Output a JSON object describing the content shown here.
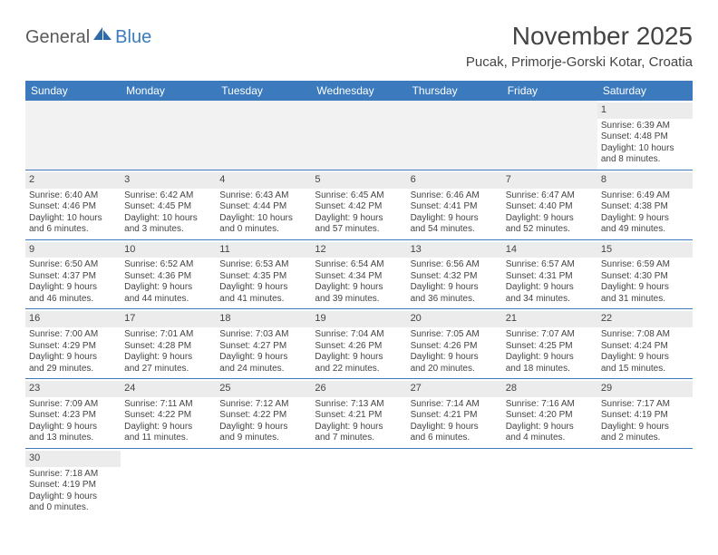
{
  "logo": {
    "part1": "General",
    "part2": "Blue"
  },
  "title": "November 2025",
  "location": "Pucak, Primorje-Gorski Kotar, Croatia",
  "colors": {
    "header_bg": "#3a7abd",
    "header_text": "#ffffff",
    "daynum_bg": "#ececec",
    "empty_bg": "#f2f2f2",
    "text": "#444444",
    "row_border": "#3a7abd"
  },
  "weekdays": [
    "Sunday",
    "Monday",
    "Tuesday",
    "Wednesday",
    "Thursday",
    "Friday",
    "Saturday"
  ],
  "weeks": [
    [
      null,
      null,
      null,
      null,
      null,
      null,
      {
        "n": "1",
        "sunrise": "Sunrise: 6:39 AM",
        "sunset": "Sunset: 4:48 PM",
        "day1": "Daylight: 10 hours",
        "day2": "and 8 minutes."
      }
    ],
    [
      {
        "n": "2",
        "sunrise": "Sunrise: 6:40 AM",
        "sunset": "Sunset: 4:46 PM",
        "day1": "Daylight: 10 hours",
        "day2": "and 6 minutes."
      },
      {
        "n": "3",
        "sunrise": "Sunrise: 6:42 AM",
        "sunset": "Sunset: 4:45 PM",
        "day1": "Daylight: 10 hours",
        "day2": "and 3 minutes."
      },
      {
        "n": "4",
        "sunrise": "Sunrise: 6:43 AM",
        "sunset": "Sunset: 4:44 PM",
        "day1": "Daylight: 10 hours",
        "day2": "and 0 minutes."
      },
      {
        "n": "5",
        "sunrise": "Sunrise: 6:45 AM",
        "sunset": "Sunset: 4:42 PM",
        "day1": "Daylight: 9 hours",
        "day2": "and 57 minutes."
      },
      {
        "n": "6",
        "sunrise": "Sunrise: 6:46 AM",
        "sunset": "Sunset: 4:41 PM",
        "day1": "Daylight: 9 hours",
        "day2": "and 54 minutes."
      },
      {
        "n": "7",
        "sunrise": "Sunrise: 6:47 AM",
        "sunset": "Sunset: 4:40 PM",
        "day1": "Daylight: 9 hours",
        "day2": "and 52 minutes."
      },
      {
        "n": "8",
        "sunrise": "Sunrise: 6:49 AM",
        "sunset": "Sunset: 4:38 PM",
        "day1": "Daylight: 9 hours",
        "day2": "and 49 minutes."
      }
    ],
    [
      {
        "n": "9",
        "sunrise": "Sunrise: 6:50 AM",
        "sunset": "Sunset: 4:37 PM",
        "day1": "Daylight: 9 hours",
        "day2": "and 46 minutes."
      },
      {
        "n": "10",
        "sunrise": "Sunrise: 6:52 AM",
        "sunset": "Sunset: 4:36 PM",
        "day1": "Daylight: 9 hours",
        "day2": "and 44 minutes."
      },
      {
        "n": "11",
        "sunrise": "Sunrise: 6:53 AM",
        "sunset": "Sunset: 4:35 PM",
        "day1": "Daylight: 9 hours",
        "day2": "and 41 minutes."
      },
      {
        "n": "12",
        "sunrise": "Sunrise: 6:54 AM",
        "sunset": "Sunset: 4:34 PM",
        "day1": "Daylight: 9 hours",
        "day2": "and 39 minutes."
      },
      {
        "n": "13",
        "sunrise": "Sunrise: 6:56 AM",
        "sunset": "Sunset: 4:32 PM",
        "day1": "Daylight: 9 hours",
        "day2": "and 36 minutes."
      },
      {
        "n": "14",
        "sunrise": "Sunrise: 6:57 AM",
        "sunset": "Sunset: 4:31 PM",
        "day1": "Daylight: 9 hours",
        "day2": "and 34 minutes."
      },
      {
        "n": "15",
        "sunrise": "Sunrise: 6:59 AM",
        "sunset": "Sunset: 4:30 PM",
        "day1": "Daylight: 9 hours",
        "day2": "and 31 minutes."
      }
    ],
    [
      {
        "n": "16",
        "sunrise": "Sunrise: 7:00 AM",
        "sunset": "Sunset: 4:29 PM",
        "day1": "Daylight: 9 hours",
        "day2": "and 29 minutes."
      },
      {
        "n": "17",
        "sunrise": "Sunrise: 7:01 AM",
        "sunset": "Sunset: 4:28 PM",
        "day1": "Daylight: 9 hours",
        "day2": "and 27 minutes."
      },
      {
        "n": "18",
        "sunrise": "Sunrise: 7:03 AM",
        "sunset": "Sunset: 4:27 PM",
        "day1": "Daylight: 9 hours",
        "day2": "and 24 minutes."
      },
      {
        "n": "19",
        "sunrise": "Sunrise: 7:04 AM",
        "sunset": "Sunset: 4:26 PM",
        "day1": "Daylight: 9 hours",
        "day2": "and 22 minutes."
      },
      {
        "n": "20",
        "sunrise": "Sunrise: 7:05 AM",
        "sunset": "Sunset: 4:26 PM",
        "day1": "Daylight: 9 hours",
        "day2": "and 20 minutes."
      },
      {
        "n": "21",
        "sunrise": "Sunrise: 7:07 AM",
        "sunset": "Sunset: 4:25 PM",
        "day1": "Daylight: 9 hours",
        "day2": "and 18 minutes."
      },
      {
        "n": "22",
        "sunrise": "Sunrise: 7:08 AM",
        "sunset": "Sunset: 4:24 PM",
        "day1": "Daylight: 9 hours",
        "day2": "and 15 minutes."
      }
    ],
    [
      {
        "n": "23",
        "sunrise": "Sunrise: 7:09 AM",
        "sunset": "Sunset: 4:23 PM",
        "day1": "Daylight: 9 hours",
        "day2": "and 13 minutes."
      },
      {
        "n": "24",
        "sunrise": "Sunrise: 7:11 AM",
        "sunset": "Sunset: 4:22 PM",
        "day1": "Daylight: 9 hours",
        "day2": "and 11 minutes."
      },
      {
        "n": "25",
        "sunrise": "Sunrise: 7:12 AM",
        "sunset": "Sunset: 4:22 PM",
        "day1": "Daylight: 9 hours",
        "day2": "and 9 minutes."
      },
      {
        "n": "26",
        "sunrise": "Sunrise: 7:13 AM",
        "sunset": "Sunset: 4:21 PM",
        "day1": "Daylight: 9 hours",
        "day2": "and 7 minutes."
      },
      {
        "n": "27",
        "sunrise": "Sunrise: 7:14 AM",
        "sunset": "Sunset: 4:21 PM",
        "day1": "Daylight: 9 hours",
        "day2": "and 6 minutes."
      },
      {
        "n": "28",
        "sunrise": "Sunrise: 7:16 AM",
        "sunset": "Sunset: 4:20 PM",
        "day1": "Daylight: 9 hours",
        "day2": "and 4 minutes."
      },
      {
        "n": "29",
        "sunrise": "Sunrise: 7:17 AM",
        "sunset": "Sunset: 4:19 PM",
        "day1": "Daylight: 9 hours",
        "day2": "and 2 minutes."
      }
    ],
    [
      {
        "n": "30",
        "sunrise": "Sunrise: 7:18 AM",
        "sunset": "Sunset: 4:19 PM",
        "day1": "Daylight: 9 hours",
        "day2": "and 0 minutes."
      },
      null,
      null,
      null,
      null,
      null,
      null
    ]
  ]
}
